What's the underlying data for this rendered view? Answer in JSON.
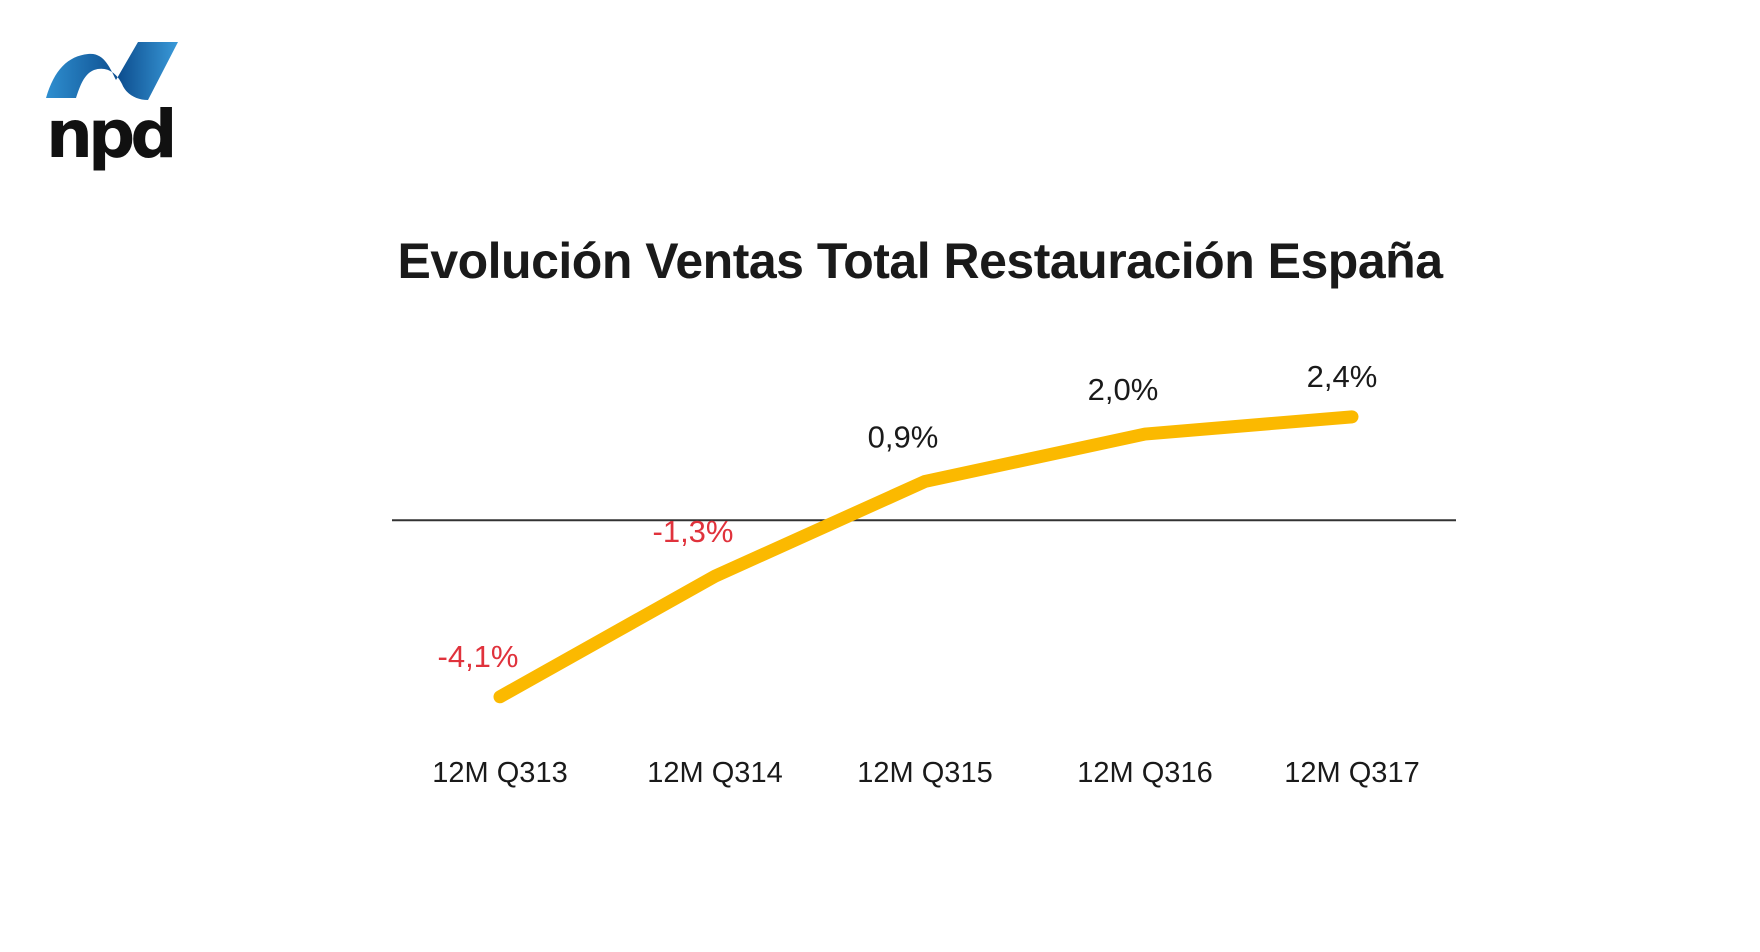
{
  "brand": {
    "name": "npd",
    "colors": {
      "swoosh_light": "#3a9ad9",
      "swoosh_dark": "#0d4e8f",
      "text": "#111111"
    }
  },
  "chart_data": {
    "type": "line",
    "title": "Evolución Ventas Total Restauración España",
    "xlabel": "",
    "ylabel": "",
    "categories": [
      "12M Q313",
      "12M Q314",
      "12M Q315",
      "12M Q316",
      "12M Q317"
    ],
    "series": [
      {
        "values": [
          -4.1,
          -1.3,
          0.9,
          2.0,
          2.4
        ],
        "labels": [
          "-4,1%",
          "-1,3%",
          "0,9%",
          "2,0%",
          "2,4%"
        ],
        "color": "#fbb900"
      }
    ],
    "ylim": [
      -4.5,
      3.0
    ],
    "zero_line": true,
    "grid": false,
    "legend": "none",
    "colors": {
      "negative_label": "#e0323c",
      "positive_label": "#1a1a1a",
      "zero_line": "#333333"
    }
  }
}
